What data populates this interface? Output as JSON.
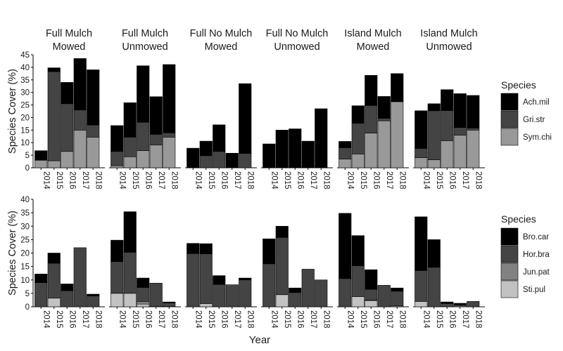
{
  "chart_data": {
    "type": "bar",
    "stacked": true,
    "xlabel": "Year",
    "x_tick_labels": [
      "2014",
      "2015",
      "2016",
      "2017",
      "2018"
    ],
    "treatments": [
      {
        "line1": "Full Mulch",
        "line2": "Mowed"
      },
      {
        "line1": "Full Mulch",
        "line2": "Unmowed"
      },
      {
        "line1": "Full No Mulch",
        "line2": "Mowed"
      },
      {
        "line1": "Full No Mulch",
        "line2": "Unmowed"
      },
      {
        "line1": "Island Mulch",
        "line2": "Mowed"
      },
      {
        "line1": "Island Mulch",
        "line2": "Unmowed"
      }
    ],
    "rows": [
      {
        "ylabel": "Species Cover (%)",
        "ylim": [
          0,
          45
        ],
        "yticks": [
          0,
          5,
          10,
          15,
          20,
          25,
          30,
          35,
          40,
          45
        ],
        "legend_title": "Species",
        "species": [
          {
            "name": "Ach.mil",
            "color": "#000000"
          },
          {
            "name": "Gri.str",
            "color": "#444444"
          },
          {
            "name": "Sym.chi",
            "color": "#999999"
          }
        ],
        "panels": [
          [
            [
              3.8,
              0,
              3
            ],
            [
              1.5,
              35.5,
              2.8
            ],
            [
              8.5,
              19,
              6.5
            ],
            [
              20.5,
              8,
              15
            ],
            [
              22,
              4.8,
              12.2
            ]
          ],
          [
            [
              10.3,
              5.7,
              0.8
            ],
            [
              13.7,
              7.8,
              4.4
            ],
            [
              22.5,
              11.3,
              6.8
            ],
            [
              15,
              4.2,
              9.1
            ],
            [
              27.2,
              1.7,
              12.2
            ]
          ],
          [
            [
              7.8,
              0,
              0
            ],
            [
              5.8,
              4.8,
              0
            ],
            [
              10.6,
              6.5,
              0
            ],
            [
              5.8,
              0,
              0
            ],
            [
              27.8,
              5.7,
              0
            ]
          ],
          [
            [
              9.5,
              0,
              0
            ],
            [
              15,
              0,
              0
            ],
            [
              15.5,
              0,
              0
            ],
            [
              10.6,
              0,
              0
            ],
            [
              23.5,
              0,
              0
            ]
          ],
          [
            [
              2.5,
              4.5,
              3.5
            ],
            [
              7,
              12.2,
              5.5
            ],
            [
              12,
              11,
              13.8
            ],
            [
              8.7,
              1,
              18.7
            ],
            [
              11.2,
              0,
              26.3
            ]
          ],
          [
            [
              15,
              3.7,
              4
            ],
            [
              2.8,
              19.5,
              3.2
            ],
            [
              8.3,
              12,
              10.8
            ],
            [
              13.5,
              3,
              13
            ],
            [
              13,
              0.8,
              15
            ]
          ]
        ]
      },
      {
        "ylabel": "Species Cover (%)",
        "ylim": [
          0,
          40
        ],
        "yticks": [
          0,
          5,
          10,
          15,
          20,
          25,
          30,
          35,
          40
        ],
        "legend_title": "Species",
        "species": [
          {
            "name": "Bro.car",
            "color": "#000000"
          },
          {
            "name": "Hor.bra",
            "color": "#444444"
          },
          {
            "name": "Jun.pat",
            "color": "#828282"
          },
          {
            "name": "Sti.pul",
            "color": "#c2c2c2"
          }
        ],
        "panels": [
          [
            [
              3.2,
              9,
              0,
              0
            ],
            [
              3.8,
              13,
              0,
              3.2
            ],
            [
              2.5,
              6,
              0,
              0
            ],
            [
              0,
              22,
              0,
              0
            ],
            [
              0.7,
              4,
              0,
              0
            ]
          ],
          [
            [
              8,
              11.8,
              0,
              5
            ],
            [
              15.1,
              15.3,
              0,
              5
            ],
            [
              3.5,
              5.2,
              1,
              1
            ],
            [
              0,
              8.6,
              0,
              0.2
            ],
            [
              0.4,
              1.2,
              0,
              0.2
            ]
          ],
          [
            [
              3.8,
              19.8,
              0,
              0
            ],
            [
              3.8,
              18.5,
              0,
              1.2
            ],
            [
              3.3,
              8.3,
              0,
              0
            ],
            [
              0,
              8.2,
              0,
              0
            ],
            [
              0.7,
              10,
              0,
              0
            ]
          ],
          [
            [
              9.3,
              16,
              0,
              0
            ],
            [
              4.2,
              21.3,
              0,
              4.5
            ],
            [
              1.7,
              5.3,
              0,
              0
            ],
            [
              0,
              14,
              0,
              0
            ],
            [
              0,
              10,
              0,
              0
            ]
          ],
          [
            [
              24.3,
              10.5,
              0,
              0
            ],
            [
              11.2,
              11.5,
              0,
              3.8
            ],
            [
              7.3,
              4,
              0.2,
              2.3
            ],
            [
              0,
              8,
              0,
              0
            ],
            [
              1.2,
              5.5,
              0,
              0.3
            ]
          ],
          [
            [
              20,
              11.5,
              0,
              2
            ],
            [
              10.3,
              14.7,
              0,
              0
            ],
            [
              0.6,
              1.2,
              0,
              0
            ],
            [
              0.5,
              0.5,
              0,
              0.3
            ],
            [
              0,
              2,
              0,
              0
            ]
          ]
        ]
      }
    ]
  }
}
